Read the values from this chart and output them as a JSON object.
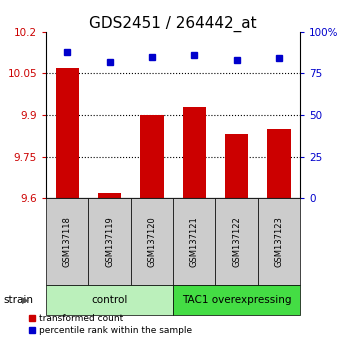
{
  "title": "GDS2451 / 264442_at",
  "samples": [
    "GSM137118",
    "GSM137119",
    "GSM137120",
    "GSM137121",
    "GSM137122",
    "GSM137123"
  ],
  "red_values": [
    10.07,
    9.62,
    9.9,
    9.93,
    9.83,
    9.85
  ],
  "blue_values": [
    88,
    82,
    85,
    86,
    83,
    84
  ],
  "ylim_left": [
    9.6,
    10.2
  ],
  "ylim_right": [
    0,
    100
  ],
  "yticks_left": [
    9.6,
    9.75,
    9.9,
    10.05,
    10.2
  ],
  "yticks_right": [
    0,
    25,
    50,
    75,
    100
  ],
  "ytick_labels_left": [
    "9.6",
    "9.75",
    "9.9",
    "10.05",
    "10.2"
  ],
  "ytick_labels_right": [
    "0",
    "25",
    "50",
    "75",
    "100%"
  ],
  "hlines": [
    9.75,
    9.9,
    10.05
  ],
  "groups": [
    {
      "label": "control",
      "indices": [
        0,
        1,
        2
      ],
      "color": "#bbf0bb"
    },
    {
      "label": "TAC1 overexpressing",
      "indices": [
        3,
        4,
        5
      ],
      "color": "#44dd44"
    }
  ],
  "bar_color": "#cc0000",
  "dot_color": "#0000cc",
  "bar_width": 0.55,
  "group_label": "strain",
  "legend_red": "transformed count",
  "legend_blue": "percentile rank within the sample",
  "title_fontsize": 11,
  "tick_fontsize": 7.5,
  "sample_fontsize": 6,
  "group_fontsize": 7.5,
  "legend_fontsize": 6.5
}
